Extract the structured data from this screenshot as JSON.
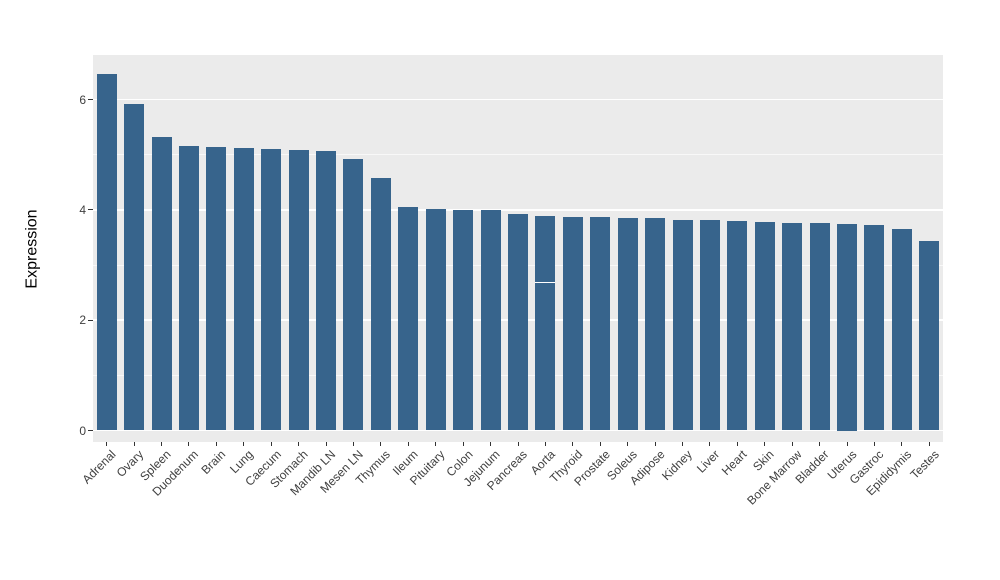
{
  "chart_data": {
    "type": "bar",
    "title": "",
    "xlabel": "",
    "ylabel": "Expression",
    "categories": [
      "Adrenal",
      "Ovary",
      "Spleen",
      "Duodenum",
      "Brain",
      "Lung",
      "Caecum",
      "Stomach",
      "Mandib LN",
      "Mesen LN",
      "Thymus",
      "Ileum",
      "Pituitary",
      "Colon",
      "Jejunum",
      "Pancreas",
      "Aorta",
      "Thyroid",
      "Prostate",
      "Soleus",
      "Adipose",
      "Kidney",
      "Liver",
      "Heart",
      "Skin",
      "Bone Marrow",
      "Bladder",
      "Uterus",
      "Gastroc",
      "Epididymis",
      "Testes"
    ],
    "values": [
      6.46,
      5.92,
      5.32,
      5.16,
      5.14,
      5.12,
      5.1,
      5.09,
      5.06,
      4.93,
      4.57,
      4.06,
      4.02,
      4.0,
      3.99,
      3.92,
      3.89,
      3.88,
      3.87,
      3.86,
      3.85,
      3.82,
      3.81,
      3.8,
      3.78,
      3.77,
      3.76,
      3.75,
      3.73,
      3.66,
      3.44
    ],
    "ylim": [
      0,
      6.8
    ],
    "yticks": [
      0,
      2,
      4,
      6
    ],
    "ytick_labels": [
      "0",
      "2",
      "4",
      "6"
    ],
    "minor_gridlines": [
      1,
      3,
      5
    ],
    "grid": "on",
    "legend": "none",
    "sorted": "descending",
    "white_dash_marks": [
      {
        "category": "Aorta",
        "value": 2.68
      }
    ],
    "colors": {
      "bar": "#37648C",
      "panel_background": "#EBEBEB",
      "gridline": "#FFFFFF",
      "figure_background": "#FFFFFF",
      "tick": "#333333",
      "tick_label": "#404040",
      "axis_title": "#000000"
    }
  }
}
